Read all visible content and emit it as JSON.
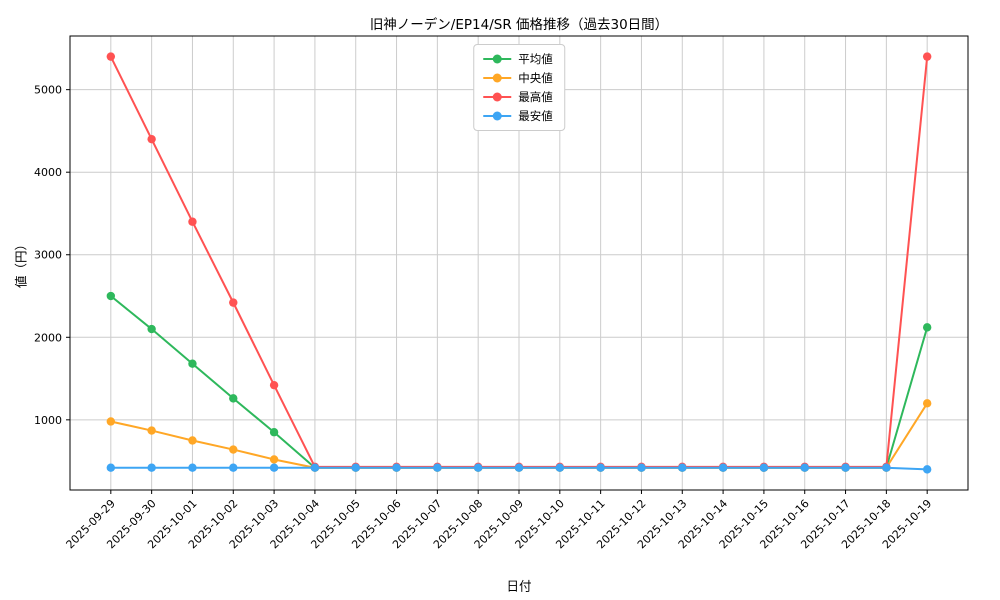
{
  "chart_data": {
    "type": "line",
    "title": "旧神ノーデン/EP14/SR 価格推移（過去30日間）",
    "xlabel": "日付",
    "ylabel": "値（円）",
    "categories": [
      "2025-09-29",
      "2025-09-30",
      "2025-10-01",
      "2025-10-02",
      "2025-10-03",
      "2025-10-04",
      "2025-10-05",
      "2025-10-06",
      "2025-10-07",
      "2025-10-08",
      "2025-10-09",
      "2025-10-10",
      "2025-10-11",
      "2025-10-12",
      "2025-10-13",
      "2025-10-14",
      "2025-10-15",
      "2025-10-16",
      "2025-10-17",
      "2025-10-18",
      "2025-10-19"
    ],
    "series": [
      {
        "key": "average",
        "name": "平均値",
        "color": "#2eb85c",
        "values": [
          2500,
          2100,
          1680,
          1260,
          850,
          420,
          420,
          420,
          420,
          420,
          420,
          420,
          420,
          420,
          420,
          420,
          420,
          420,
          420,
          420,
          2120
        ]
      },
      {
        "key": "median",
        "name": "中央値",
        "color": "#ffa726",
        "values": [
          980,
          870,
          750,
          640,
          520,
          420,
          420,
          420,
          420,
          420,
          420,
          420,
          420,
          420,
          420,
          420,
          420,
          420,
          420,
          420,
          1200
        ]
      },
      {
        "key": "max",
        "name": "最高値",
        "color": "#ff5252",
        "values": [
          5400,
          4400,
          3400,
          2420,
          1420,
          430,
          430,
          430,
          430,
          430,
          430,
          430,
          430,
          430,
          430,
          430,
          430,
          430,
          430,
          430,
          5400
        ]
      },
      {
        "key": "min",
        "name": "最安値",
        "color": "#3da5f4",
        "values": [
          420,
          420,
          420,
          420,
          420,
          420,
          420,
          420,
          420,
          420,
          420,
          420,
          420,
          420,
          420,
          420,
          420,
          420,
          420,
          420,
          400
        ]
      }
    ],
    "yticks": [
      1000,
      2000,
      3000,
      4000,
      5000
    ],
    "ylim": [
      150,
      5650
    ],
    "grid": true,
    "grid_color": "#cccccc",
    "axis_color": "#000000",
    "background": "#ffffff",
    "legend_position": "upper center inside"
  }
}
